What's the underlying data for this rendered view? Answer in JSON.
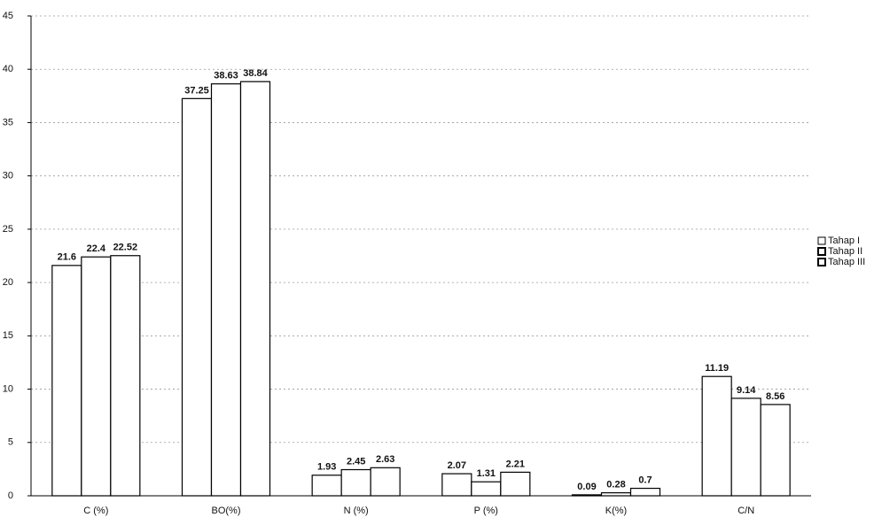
{
  "chart_data": {
    "type": "bar",
    "categories": [
      "C (%)",
      "BO(%)",
      "N (%)",
      "P (%)",
      "K(%)",
      "C/N"
    ],
    "series": [
      {
        "name": "Tahap I",
        "color": "#ffffff",
        "values": [
          21.6,
          37.25,
          1.93,
          2.07,
          0.09,
          11.19
        ]
      },
      {
        "name": "Tahap II",
        "color": "#ffffff",
        "values": [
          22.4,
          38.63,
          2.45,
          1.31,
          0.28,
          9.14
        ]
      },
      {
        "name": "Tahap III",
        "color": "#ffffff",
        "values": [
          22.52,
          38.84,
          2.63,
          2.21,
          0.7,
          8.56
        ]
      }
    ],
    "ylim": [
      0,
      45
    ],
    "yticks": [
      0,
      5,
      10,
      15,
      20,
      25,
      30,
      35,
      40,
      45
    ],
    "grid": true,
    "legend": "right"
  }
}
